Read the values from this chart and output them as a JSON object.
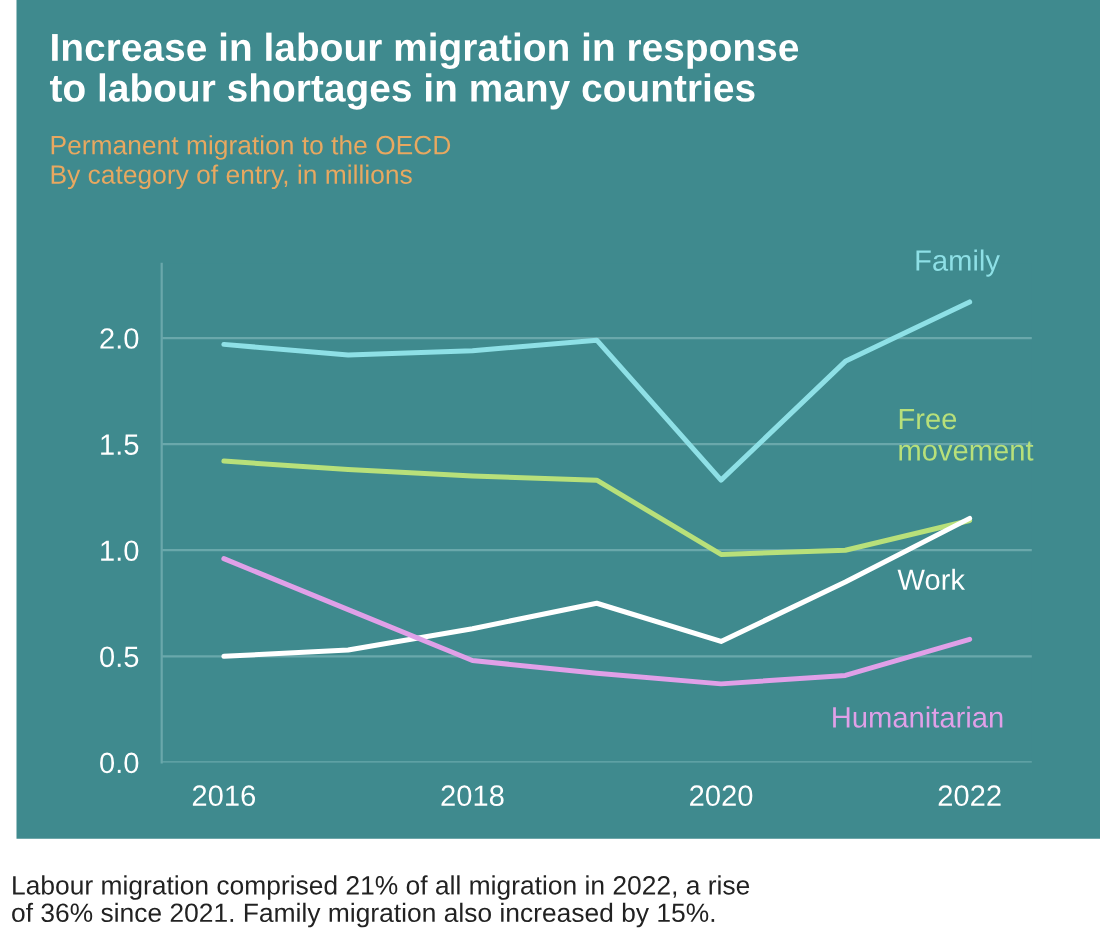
{
  "chart_data": {
    "type": "line",
    "title": "Increase in labour migration in response\nto labour shortages in many countries",
    "subtitle": "Permanent migration to the OECD\nBy category of entry, in millions",
    "x": [
      2016,
      2017,
      2018,
      2019,
      2020,
      2021,
      2022
    ],
    "series": [
      {
        "name": "Family",
        "color": "#8ee0e6",
        "values": [
          1.97,
          1.92,
          1.94,
          1.99,
          1.33,
          1.89,
          2.17
        ]
      },
      {
        "name": "Free\nmovement",
        "color": "#b8e07a",
        "values": [
          1.42,
          1.38,
          1.35,
          1.33,
          0.98,
          1.0,
          1.14
        ]
      },
      {
        "name": "Work",
        "color": "#ffffff",
        "values": [
          0.5,
          0.53,
          0.63,
          0.75,
          0.57,
          0.85,
          1.15
        ]
      },
      {
        "name": "Humanitarian",
        "color": "#e0a0e8",
        "values": [
          0.96,
          0.72,
          0.48,
          0.42,
          0.37,
          0.41,
          0.58
        ]
      }
    ],
    "xlim": [
      2015.5,
      2022.5
    ],
    "xticks": [
      2016,
      2018,
      2020,
      2022
    ],
    "ylim": [
      0,
      2.35
    ],
    "yticks": [
      {
        "value": 0,
        "label": "0.0"
      },
      {
        "value": 0.5,
        "label": "0.5"
      },
      {
        "value": 1,
        "label": "1.0"
      },
      {
        "value": 1.5,
        "label": "1.5"
      },
      {
        "value": 2,
        "label": "2.0"
      }
    ],
    "grid": "y",
    "legend": false,
    "marker": "none",
    "line_style": "solid",
    "annotations": [
      "Labour migration comprised 21% of all migration in 2022, a rise\nof 36% since 2021. Family migration also increased by 15%."
    ]
  }
}
